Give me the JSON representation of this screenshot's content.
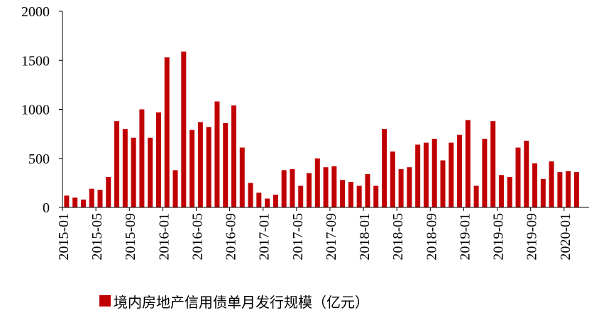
{
  "chart_data": {
    "type": "bar",
    "color": "#C00000",
    "ylim": [
      0,
      2000
    ],
    "yticks": [
      "0",
      "500",
      "1000",
      "1500",
      "2000"
    ],
    "xticks": [
      "2015-01",
      "2015-05",
      "2015-09",
      "2016-01",
      "2016-05",
      "2016-09",
      "2017-01",
      "2017-05",
      "2017-09",
      "2018-01",
      "2018-05",
      "2018-09",
      "2019-01",
      "2019-05",
      "2019-09",
      "2020-01"
    ],
    "legend": "境内房地产信用债单月发行规模（亿元）",
    "legend_position": "bottom",
    "grid": false,
    "categories": [
      "2015-01",
      "2015-02",
      "2015-03",
      "2015-04",
      "2015-05",
      "2015-06",
      "2015-07",
      "2015-08",
      "2015-09",
      "2015-10",
      "2015-11",
      "2015-12",
      "2016-01",
      "2016-02",
      "2016-03",
      "2016-04",
      "2016-05",
      "2016-06",
      "2016-07",
      "2016-08",
      "2016-09",
      "2016-10",
      "2016-11",
      "2016-12",
      "2017-01",
      "2017-02",
      "2017-03",
      "2017-04",
      "2017-05",
      "2017-06",
      "2017-07",
      "2017-08",
      "2017-09",
      "2017-10",
      "2017-11",
      "2017-12",
      "2018-01",
      "2018-02",
      "2018-03",
      "2018-04",
      "2018-05",
      "2018-06",
      "2018-07",
      "2018-08",
      "2018-09",
      "2018-10",
      "2018-11",
      "2018-12",
      "2019-01",
      "2019-02",
      "2019-03",
      "2019-04",
      "2019-05",
      "2019-06",
      "2019-07",
      "2019-08",
      "2019-09",
      "2019-10",
      "2019-11",
      "2019-12",
      "2020-01",
      "2020-02",
      "2020-03"
    ],
    "values": [
      120,
      100,
      80,
      190,
      180,
      310,
      880,
      800,
      710,
      1000,
      710,
      970,
      1530,
      380,
      1590,
      790,
      870,
      820,
      1080,
      860,
      1040,
      610,
      250,
      150,
      90,
      130,
      380,
      390,
      220,
      350,
      500,
      410,
      420,
      280,
      260,
      220,
      340,
      220,
      800,
      570,
      390,
      410,
      640,
      660,
      700,
      480,
      660,
      740,
      890,
      220,
      700,
      880,
      330,
      310,
      610,
      680,
      450,
      290,
      470,
      360,
      370,
      360,
      0
    ]
  }
}
